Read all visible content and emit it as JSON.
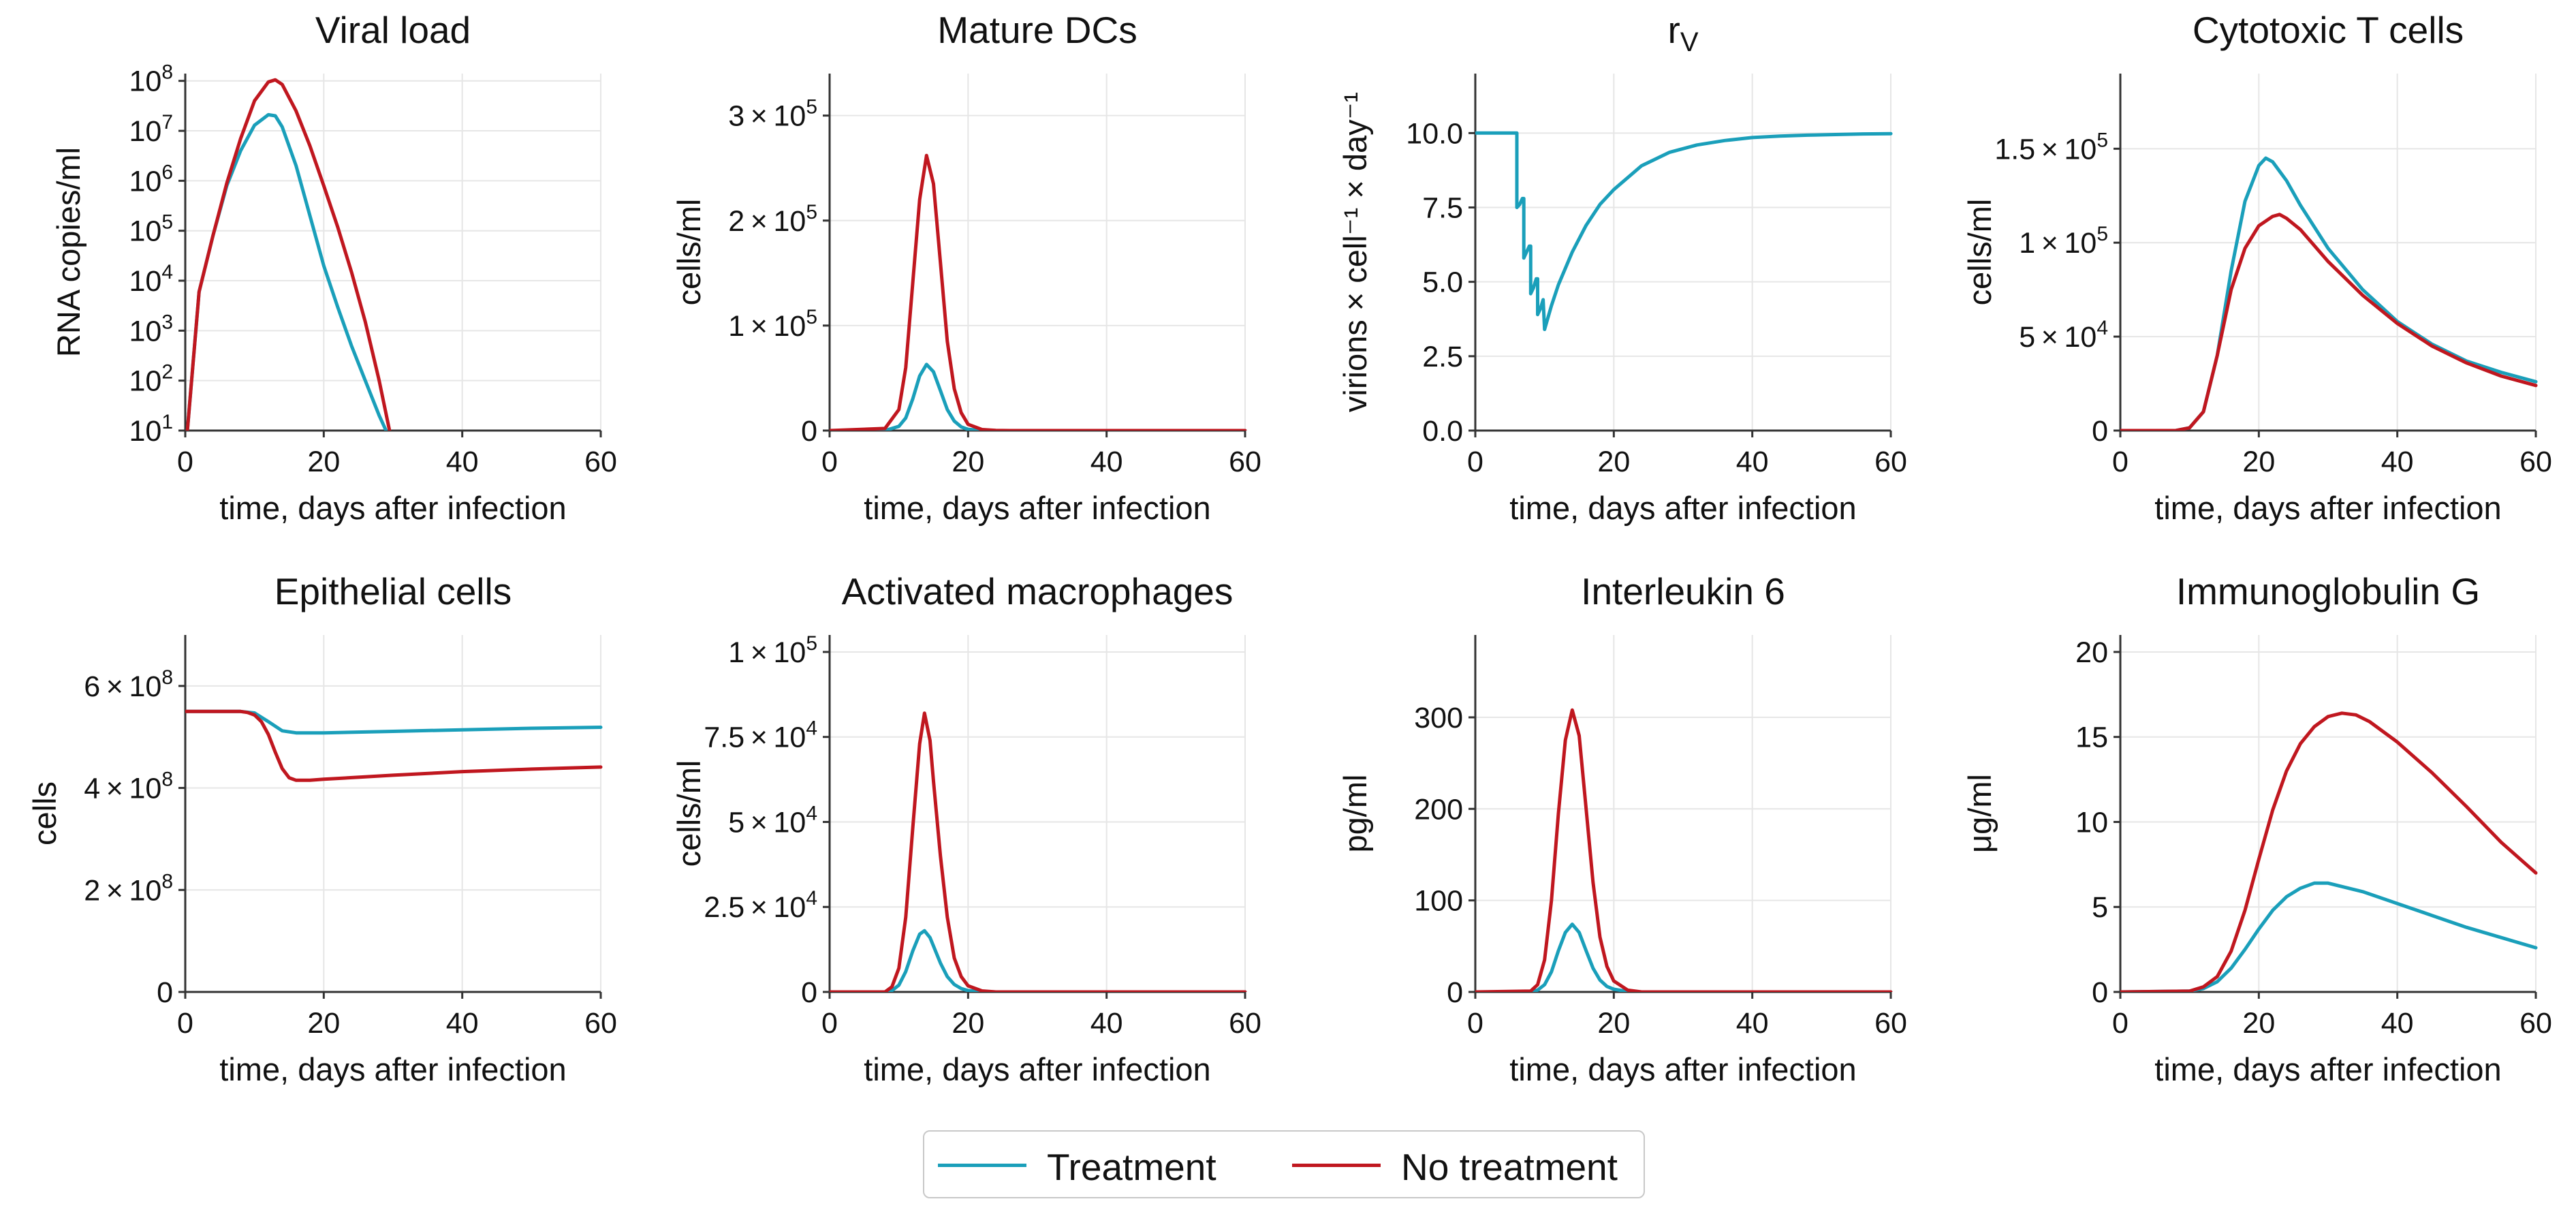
{
  "colors": {
    "treatment": "#1a9fba",
    "no_treatment": "#c0171f"
  },
  "legend": {
    "treatment": "Treatment",
    "no_treatment": "No treatment"
  },
  "chart_data": [
    {
      "id": "viral-load",
      "type": "line",
      "title": "Viral load",
      "xlabel": "time, days after infection",
      "ylabel": "RNA copies/ml",
      "yscale": "log",
      "xlim": [
        0,
        60
      ],
      "ylim": [
        10,
        140000000
      ],
      "xticks": [
        0,
        20,
        40,
        60
      ],
      "yticks": [
        {
          "v": 10,
          "base": "10",
          "exp": "1"
        },
        {
          "v": 100,
          "base": "10",
          "exp": "2"
        },
        {
          "v": 1000,
          "base": "10",
          "exp": "3"
        },
        {
          "v": 10000,
          "base": "10",
          "exp": "4"
        },
        {
          "v": 100000,
          "base": "10",
          "exp": "5"
        },
        {
          "v": 1000000,
          "base": "10",
          "exp": "6"
        },
        {
          "v": 10000000,
          "base": "10",
          "exp": "7"
        },
        {
          "v": 100000000,
          "base": "10",
          "exp": "8"
        }
      ],
      "series": [
        {
          "name": "Treatment",
          "x": [
            0.3,
            2,
            4,
            6,
            8,
            10,
            12,
            13,
            14,
            16,
            18,
            20,
            22,
            24,
            26,
            28,
            29
          ],
          "y": [
            10,
            6000,
            80000,
            800000,
            4000000,
            13000000,
            21000000,
            20000000,
            12000000,
            2000000,
            200000,
            20000,
            3000,
            500,
            100,
            20,
            10
          ]
        },
        {
          "name": "No treatment",
          "x": [
            0.3,
            2,
            4,
            6,
            8,
            10,
            12,
            13,
            14,
            16,
            18,
            20,
            22,
            24,
            26,
            28,
            29.5
          ],
          "y": [
            10,
            6000,
            80000,
            900000,
            7000000,
            40000000,
            95000000,
            105000000,
            85000000,
            25000000,
            5000000,
            800000,
            120000,
            15000,
            1500,
            100,
            10
          ]
        }
      ]
    },
    {
      "id": "mature-dcs",
      "type": "line",
      "title": "Mature DCs",
      "xlabel": "time, days after infection",
      "ylabel": "cells/ml",
      "yscale": "linear",
      "xlim": [
        0,
        60
      ],
      "ylim": [
        0,
        340000
      ],
      "xticks": [
        0,
        20,
        40,
        60
      ],
      "yticks": [
        {
          "v": 0,
          "t": "0"
        },
        {
          "v": 100000,
          "m": "1",
          "base": "10",
          "exp": "5"
        },
        {
          "v": 200000,
          "m": "2",
          "base": "10",
          "exp": "5"
        },
        {
          "v": 300000,
          "m": "3",
          "base": "10",
          "exp": "5"
        }
      ],
      "series": [
        {
          "name": "Treatment",
          "x": [
            0,
            8,
            10,
            11,
            12,
            13,
            14,
            15,
            16,
            17,
            18,
            19,
            20,
            22,
            24,
            26,
            60
          ],
          "y": [
            0,
            0,
            4000,
            12000,
            30000,
            52000,
            63000,
            56000,
            38000,
            20000,
            9000,
            3500,
            1200,
            200,
            0,
            0,
            0
          ]
        },
        {
          "name": "No treatment",
          "x": [
            0,
            8,
            10,
            11,
            12,
            13,
            14,
            15,
            16,
            17,
            18,
            19,
            20,
            22,
            24,
            26,
            60
          ],
          "y": [
            0,
            2000,
            20000,
            60000,
            140000,
            220000,
            262000,
            235000,
            160000,
            85000,
            40000,
            17000,
            6000,
            1000,
            200,
            0,
            0
          ]
        }
      ]
    },
    {
      "id": "r-v",
      "type": "line",
      "title": "r",
      "title_sub": "V",
      "xlabel": "time, days after infection",
      "ylabel": "virions × cell⁻¹ × day⁻¹",
      "yscale": "linear",
      "xlim": [
        0,
        60
      ],
      "ylim": [
        0,
        12
      ],
      "xticks": [
        0,
        20,
        40,
        60
      ],
      "yticks": [
        {
          "v": 0,
          "t": "0.0"
        },
        {
          "v": 2.5,
          "t": "2.5"
        },
        {
          "v": 5,
          "t": "5.0"
        },
        {
          "v": 7.5,
          "t": "7.5"
        },
        {
          "v": 10,
          "t": "10.0"
        }
      ],
      "series": [
        {
          "name": "Treatment",
          "x": [
            0,
            6,
            6,
            6.4,
            6.8,
            7,
            7,
            7.4,
            7.8,
            8,
            8,
            8.4,
            8.8,
            9,
            9,
            9.4,
            9.8,
            10,
            11,
            12,
            14,
            16,
            18,
            20,
            24,
            28,
            32,
            36,
            40,
            44,
            48,
            52,
            56,
            60
          ],
          "y": [
            10,
            10,
            7.5,
            7.6,
            7.8,
            7.8,
            5.8,
            6.0,
            6.2,
            6.2,
            4.6,
            4.8,
            5.1,
            5.1,
            3.9,
            4.1,
            4.4,
            3.4,
            4.2,
            4.9,
            6.0,
            6.9,
            7.6,
            8.1,
            8.9,
            9.35,
            9.6,
            9.75,
            9.85,
            9.9,
            9.93,
            9.95,
            9.97,
            9.98
          ]
        }
      ]
    },
    {
      "id": "cytotoxic-t",
      "type": "line",
      "title": "Cytotoxic T cells",
      "xlabel": "time, days after infection",
      "ylabel": "cells/ml",
      "yscale": "linear",
      "xlim": [
        0,
        60
      ],
      "ylim": [
        0,
        190000
      ],
      "xticks": [
        0,
        20,
        40,
        60
      ],
      "yticks": [
        {
          "v": 0,
          "t": "0"
        },
        {
          "v": 50000,
          "m": "5",
          "base": "10",
          "exp": "4"
        },
        {
          "v": 100000,
          "m": "1",
          "base": "10",
          "exp": "5"
        },
        {
          "v": 150000,
          "m": "1.5",
          "base": "10",
          "exp": "5"
        }
      ],
      "series": [
        {
          "name": "Treatment",
          "x": [
            0,
            8,
            10,
            12,
            14,
            16,
            18,
            20,
            21,
            22,
            24,
            26,
            30,
            35,
            40,
            45,
            50,
            55,
            60
          ],
          "y": [
            0,
            0,
            1500,
            10000,
            40000,
            85000,
            122000,
            141000,
            145000,
            143000,
            133000,
            120000,
            97000,
            75000,
            58000,
            46000,
            37000,
            31000,
            26000
          ]
        },
        {
          "name": "No treatment",
          "x": [
            0,
            8,
            10,
            12,
            14,
            16,
            18,
            20,
            22,
            23,
            24,
            26,
            30,
            35,
            40,
            45,
            50,
            55,
            60
          ],
          "y": [
            0,
            0,
            1500,
            10000,
            40000,
            75000,
            97000,
            109000,
            114000,
            115000,
            113000,
            107000,
            90000,
            72000,
            57000,
            45000,
            36000,
            29000,
            24000
          ]
        }
      ]
    },
    {
      "id": "epithelial",
      "type": "line",
      "title": "Epithelial cells",
      "xlabel": "time, days after infection",
      "ylabel": "cells",
      "yscale": "linear",
      "xlim": [
        0,
        60
      ],
      "ylim": [
        0,
        700000000
      ],
      "xticks": [
        0,
        20,
        40,
        60
      ],
      "yticks": [
        {
          "v": 0,
          "t": "0"
        },
        {
          "v": 200000000,
          "m": "2",
          "base": "10",
          "exp": "8"
        },
        {
          "v": 400000000,
          "m": "4",
          "base": "10",
          "exp": "8"
        },
        {
          "v": 600000000,
          "m": "6",
          "base": "10",
          "exp": "8"
        }
      ],
      "series": [
        {
          "name": "Treatment",
          "x": [
            0,
            8,
            10,
            12,
            14,
            16,
            20,
            30,
            40,
            50,
            60
          ],
          "y": [
            550000000,
            550000000,
            547000000,
            530000000,
            512000000,
            508000000,
            508000000,
            511000000,
            514000000,
            517000000,
            519000000
          ]
        },
        {
          "name": "No treatment",
          "x": [
            0,
            8,
            9,
            10,
            11,
            12,
            13,
            14,
            15,
            16,
            18,
            20,
            30,
            40,
            50,
            60
          ],
          "y": [
            550000000,
            550000000,
            548000000,
            543000000,
            530000000,
            505000000,
            470000000,
            438000000,
            420000000,
            415000000,
            415000000,
            417000000,
            425000000,
            432000000,
            437000000,
            441000000
          ]
        }
      ]
    },
    {
      "id": "activated-macrophages",
      "type": "line",
      "title": "Activated macrophages",
      "xlabel": "time, days after infection",
      "ylabel": "cells/ml",
      "yscale": "linear",
      "xlim": [
        0,
        60
      ],
      "ylim": [
        0,
        105000
      ],
      "xticks": [
        0,
        20,
        40,
        60
      ],
      "yticks": [
        {
          "v": 0,
          "t": "0"
        },
        {
          "v": 25000,
          "m": "2.5",
          "base": "10",
          "exp": "4"
        },
        {
          "v": 50000,
          "m": "5",
          "base": "10",
          "exp": "4"
        },
        {
          "v": 75000,
          "m": "7.5",
          "base": "10",
          "exp": "4"
        },
        {
          "v": 100000,
          "m": "1",
          "base": "10",
          "exp": "5"
        }
      ],
      "series": [
        {
          "name": "Treatment",
          "x": [
            0,
            8,
            9,
            10,
            11,
            12,
            13,
            13.7,
            14.5,
            15,
            16,
            17,
            18,
            19,
            20,
            22,
            24,
            60
          ],
          "y": [
            0,
            0,
            400,
            2000,
            6000,
            12000,
            17000,
            18000,
            16000,
            13500,
            8500,
            4500,
            2200,
            1000,
            400,
            100,
            0,
            0
          ]
        },
        {
          "name": "No treatment",
          "x": [
            0,
            8,
            9,
            10,
            11,
            12,
            13,
            13.7,
            14.5,
            15,
            16,
            17,
            18,
            19,
            20,
            22,
            24,
            60
          ],
          "y": [
            0,
            0,
            1500,
            7000,
            22000,
            48000,
            73000,
            82000,
            74000,
            62000,
            40000,
            22000,
            10000,
            4500,
            1800,
            300,
            0,
            0
          ]
        }
      ]
    },
    {
      "id": "interleukin-6",
      "type": "line",
      "title": "Interleukin 6",
      "xlabel": "time, days after infection",
      "ylabel": "pg/ml",
      "yscale": "linear",
      "xlim": [
        0,
        60
      ],
      "ylim": [
        0,
        390
      ],
      "xticks": [
        0,
        20,
        40,
        60
      ],
      "yticks": [
        {
          "v": 0,
          "t": "0"
        },
        {
          "v": 100,
          "t": "100"
        },
        {
          "v": 200,
          "t": "200"
        },
        {
          "v": 300,
          "t": "300"
        }
      ],
      "series": [
        {
          "name": "Treatment",
          "x": [
            0,
            8,
            9,
            10,
            11,
            12,
            13,
            14,
            15,
            16,
            17,
            18,
            19,
            20,
            22,
            24,
            60
          ],
          "y": [
            0,
            0,
            2,
            8,
            22,
            45,
            65,
            74,
            65,
            45,
            26,
            13,
            6,
            3,
            0.5,
            0,
            0
          ]
        },
        {
          "name": "No treatment",
          "x": [
            0,
            8,
            9,
            10,
            11,
            12,
            13,
            14,
            15,
            16,
            17,
            18,
            19,
            20,
            22,
            24,
            60
          ],
          "y": [
            0,
            1,
            8,
            35,
            100,
            195,
            275,
            308,
            280,
            200,
            120,
            60,
            28,
            12,
            2,
            0,
            0
          ]
        }
      ]
    },
    {
      "id": "immunoglobulin-g",
      "type": "line",
      "title": "Immunoglobulin G",
      "xlabel": "time, days after infection",
      "ylabel": "μg/ml",
      "yscale": "linear",
      "xlim": [
        0,
        60
      ],
      "ylim": [
        0,
        21
      ],
      "xticks": [
        0,
        20,
        40,
        60
      ],
      "yticks": [
        {
          "v": 0,
          "t": "0"
        },
        {
          "v": 5,
          "t": "5"
        },
        {
          "v": 10,
          "t": "10"
        },
        {
          "v": 15,
          "t": "15"
        },
        {
          "v": 20,
          "t": "20"
        }
      ],
      "series": [
        {
          "name": "Treatment",
          "x": [
            0,
            10,
            12,
            14,
            16,
            18,
            20,
            22,
            24,
            26,
            28,
            30,
            32,
            35,
            40,
            45,
            50,
            55,
            60
          ],
          "y": [
            0,
            0.05,
            0.2,
            0.6,
            1.4,
            2.5,
            3.7,
            4.8,
            5.6,
            6.1,
            6.4,
            6.4,
            6.2,
            5.9,
            5.2,
            4.5,
            3.8,
            3.2,
            2.6
          ]
        },
        {
          "name": "No treatment",
          "x": [
            0,
            10,
            12,
            14,
            16,
            18,
            20,
            22,
            24,
            26,
            28,
            30,
            32,
            34,
            36,
            40,
            45,
            50,
            55,
            60
          ],
          "y": [
            0,
            0.05,
            0.3,
            0.9,
            2.4,
            4.8,
            7.8,
            10.7,
            13.0,
            14.6,
            15.6,
            16.2,
            16.4,
            16.3,
            15.9,
            14.7,
            12.9,
            10.9,
            8.8,
            7.0
          ]
        }
      ]
    }
  ]
}
